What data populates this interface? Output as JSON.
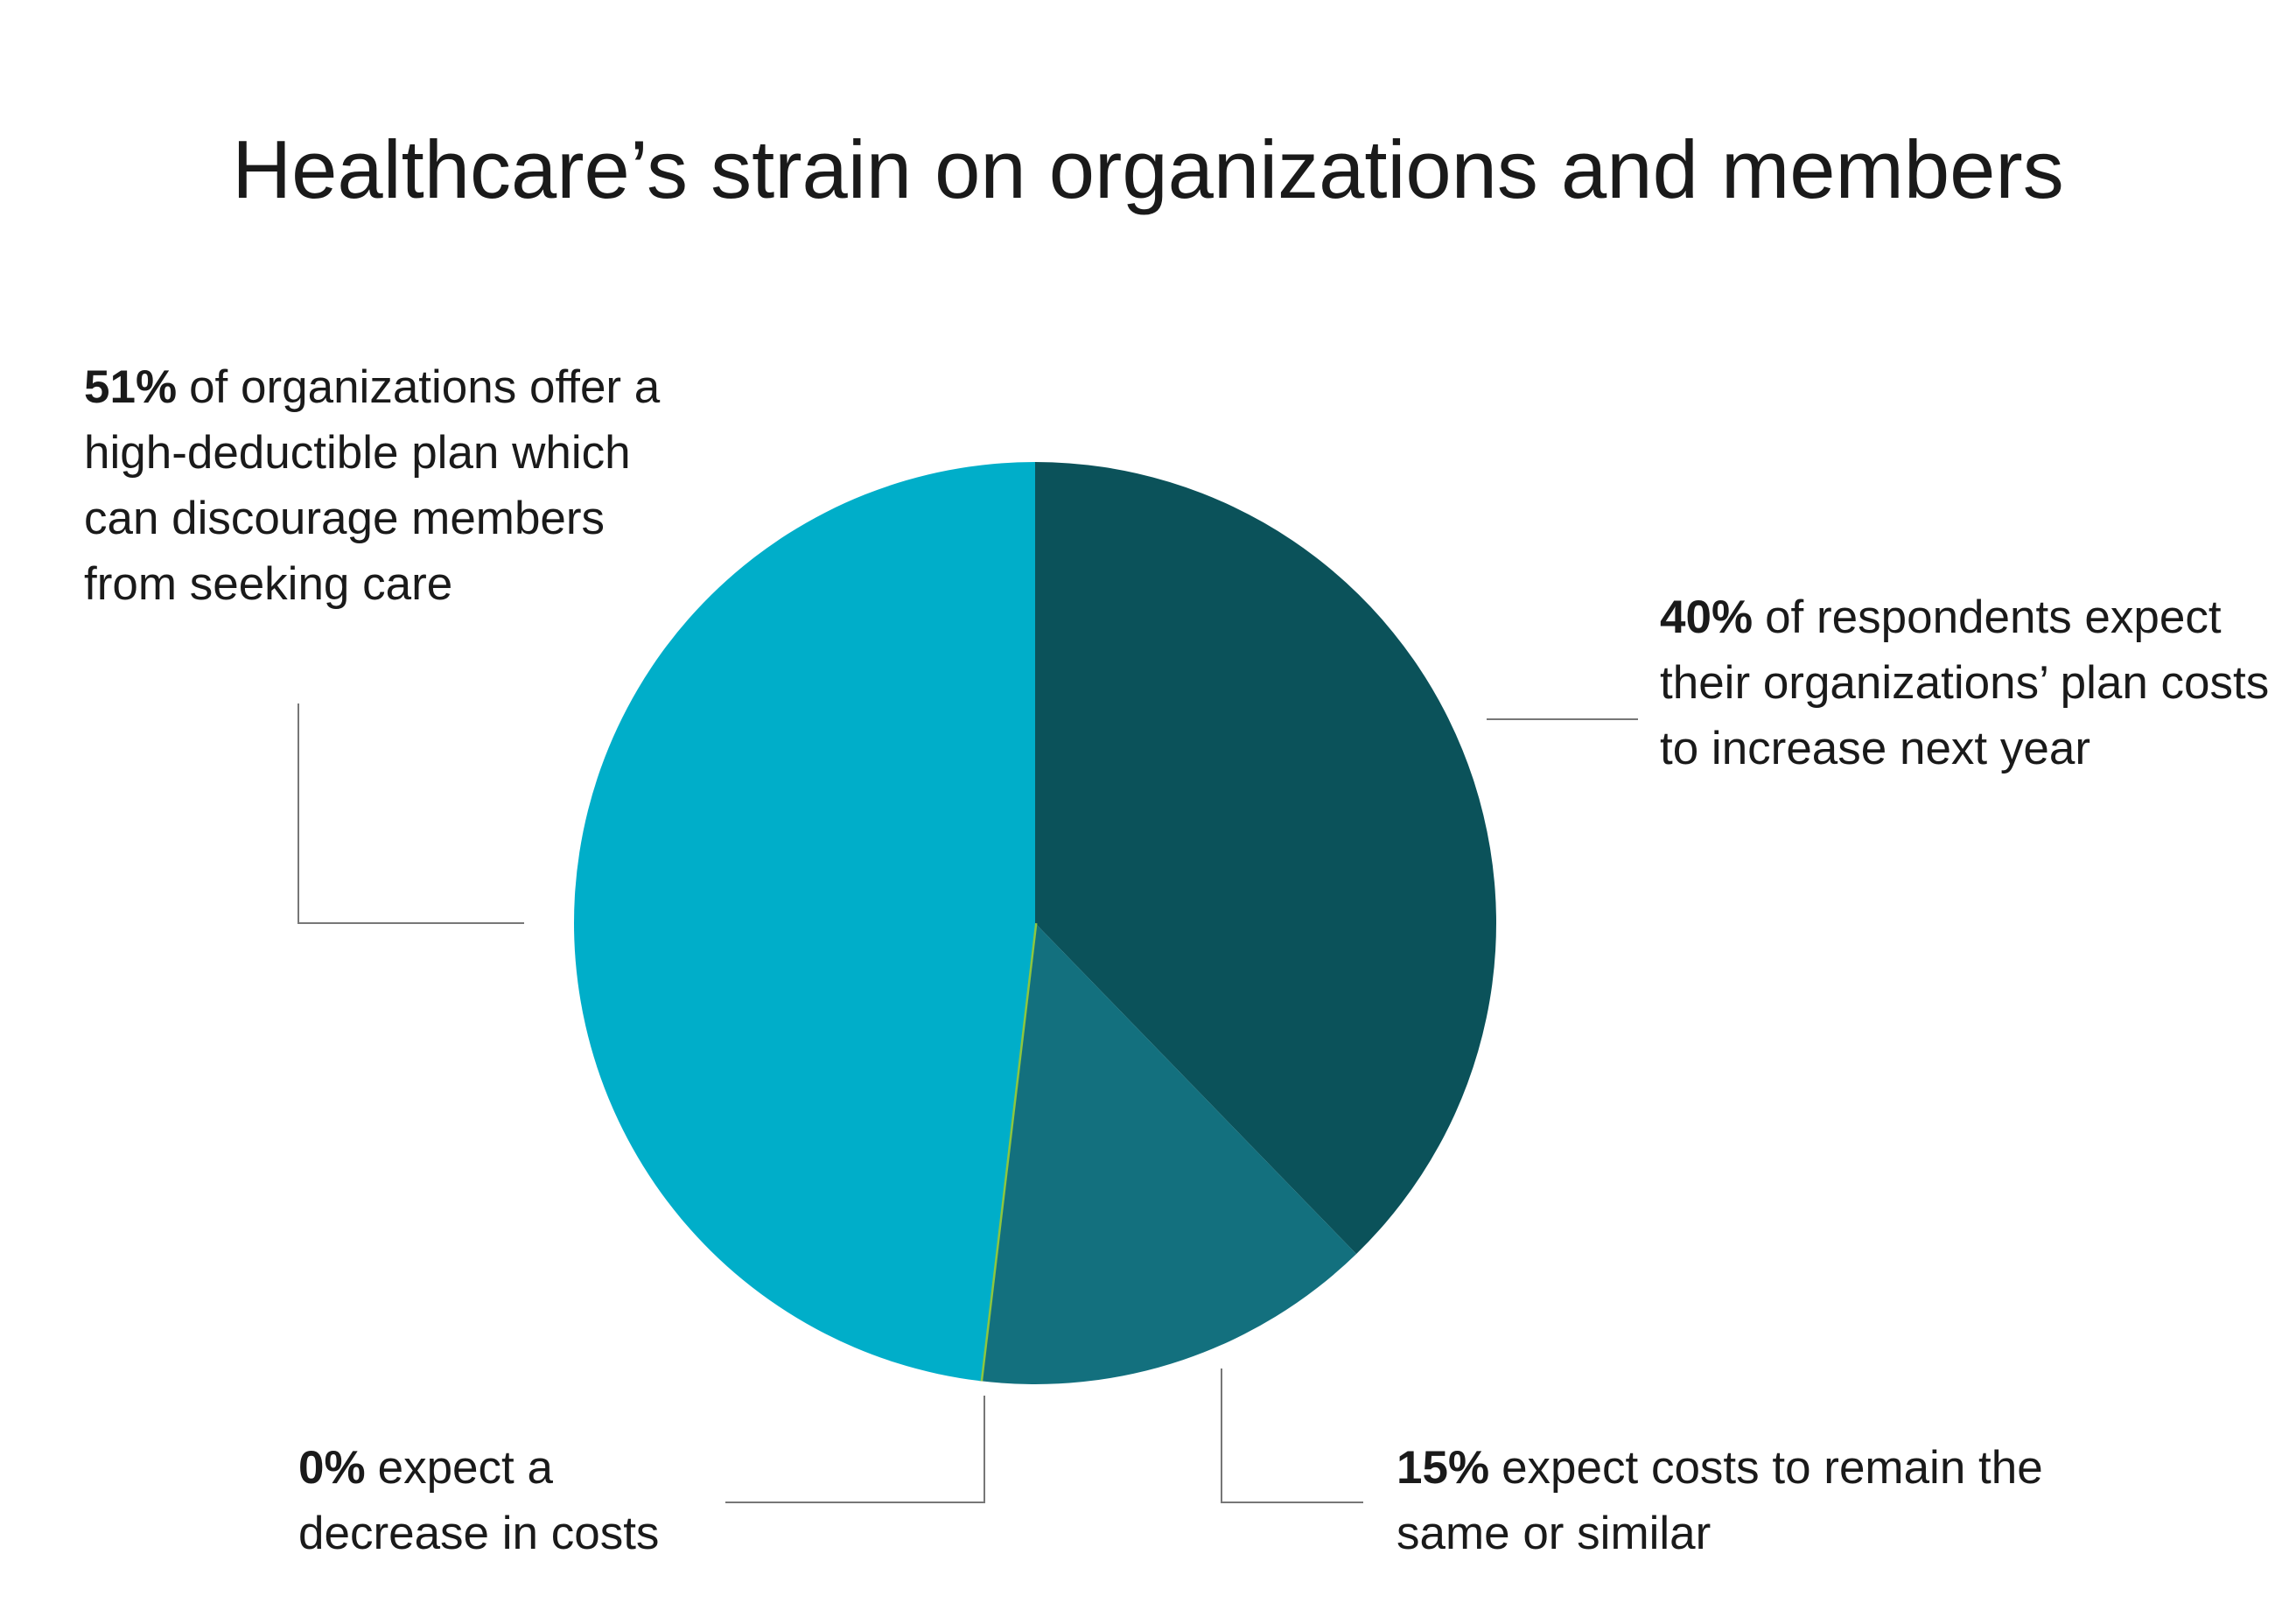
{
  "chart_data": {
    "type": "pie",
    "title": "Healthcare’s strain on organizations and members",
    "categories": [
      "of respondents expect their organizations’ plan costs to increase next year",
      "expect costs to remain the same or similar",
      "expect a decrease in costs",
      "of organizations offer a high-deductible plan which can discourage members from seeking care"
    ],
    "values": [
      40,
      15,
      0,
      51
    ],
    "value_labels": [
      "40%",
      "15%",
      "0%",
      "51%"
    ],
    "colors": [
      "#0b525a",
      "#13707e",
      "#8dc63f",
      "#00aec9"
    ]
  }
}
